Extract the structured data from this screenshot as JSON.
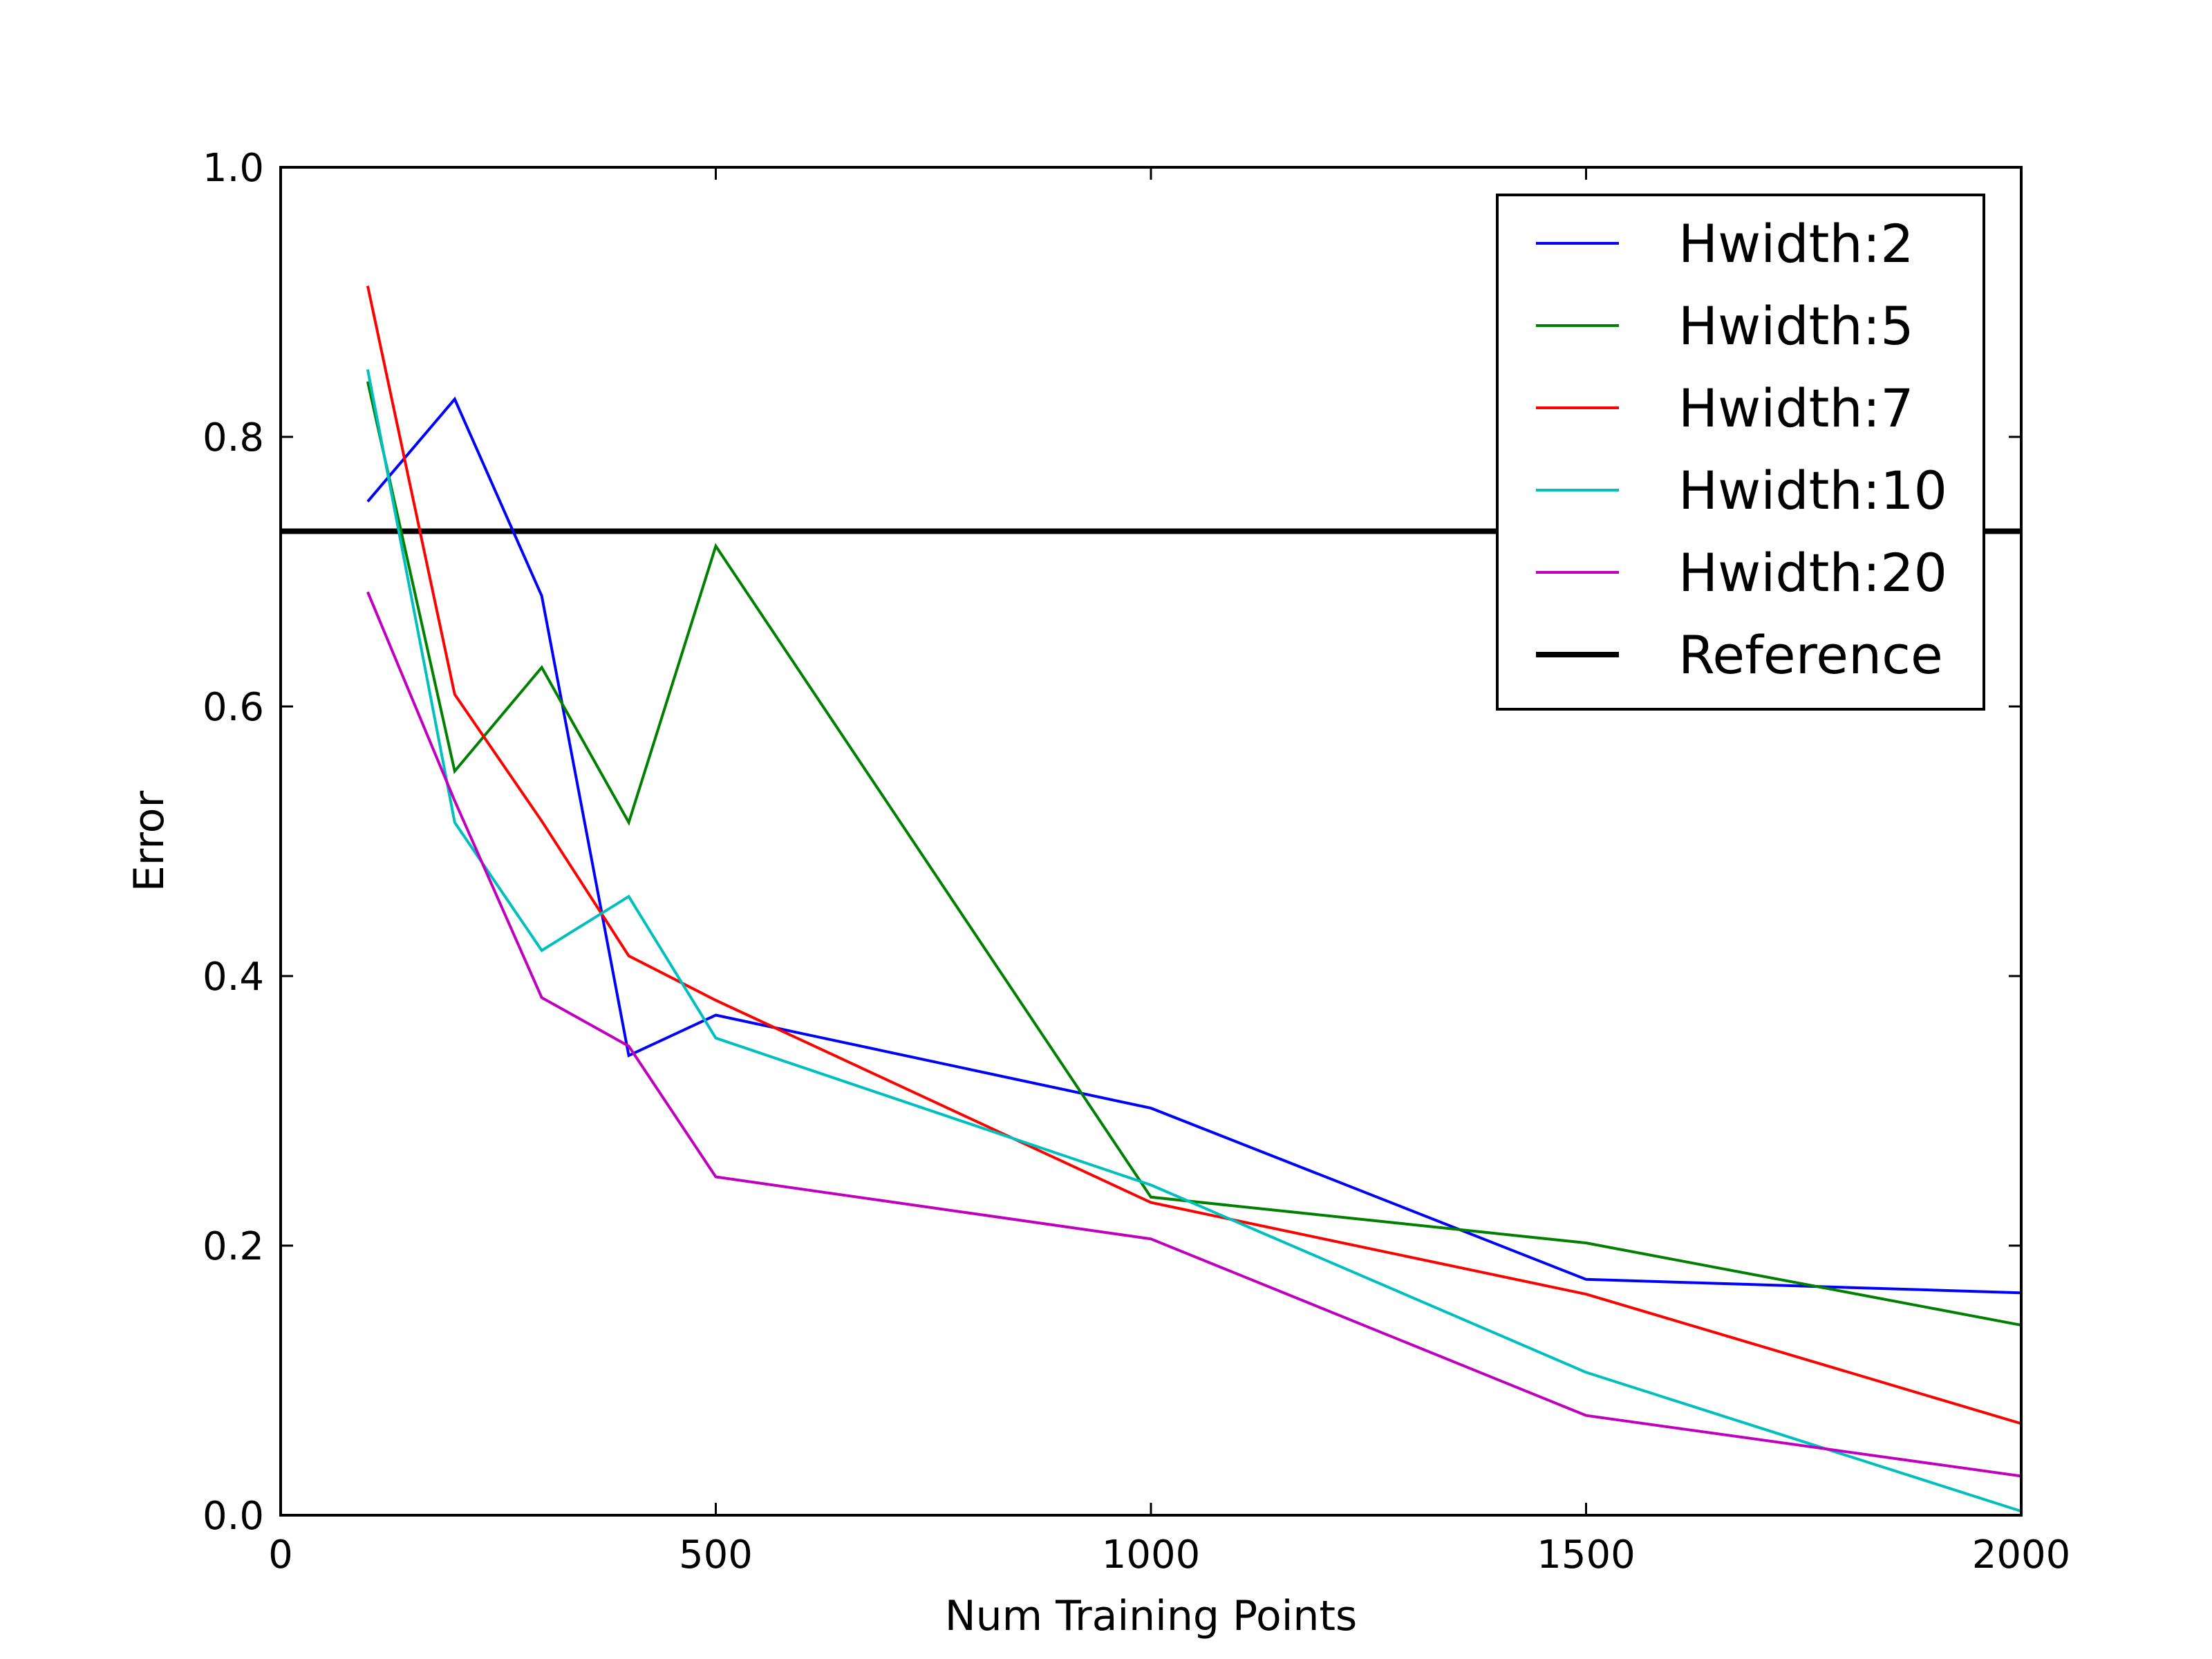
{
  "chart_data": {
    "type": "line",
    "title": "",
    "xlabel": "Num Training Points",
    "ylabel": "Error",
    "xlim": [
      0,
      2000
    ],
    "ylim": [
      0.0,
      1.0
    ],
    "xticks": [
      0,
      500,
      1000,
      1500,
      2000
    ],
    "xtick_labels": [
      "0",
      "500",
      "1000",
      "1500",
      "2000"
    ],
    "yticks": [
      0.0,
      0.2,
      0.4,
      0.6,
      0.8,
      1.0
    ],
    "ytick_labels": [
      "0.0",
      "0.2",
      "0.4",
      "0.6",
      "0.8",
      "1.0"
    ],
    "grid": false,
    "legend_position": "top-right",
    "x": [
      100,
      200,
      300,
      400,
      500,
      1000,
      1500,
      2000
    ],
    "series": [
      {
        "name": "Hwidth:2",
        "color": "#0000ff",
        "values": [
          0.752,
          0.828,
          0.682,
          0.341,
          0.371,
          0.302,
          0.175,
          0.165
        ]
      },
      {
        "name": "Hwidth:5",
        "color": "#008000",
        "values": [
          0.841,
          0.552,
          0.629,
          0.514,
          0.719,
          0.236,
          0.202,
          0.141
        ]
      },
      {
        "name": "Hwidth:7",
        "color": "#ff0000",
        "values": [
          0.912,
          0.609,
          0.515,
          0.415,
          0.382,
          0.232,
          0.164,
          0.068
        ]
      },
      {
        "name": "Hwidth:10",
        "color": "#00bfbf",
        "values": [
          0.85,
          0.514,
          0.419,
          0.459,
          0.354,
          0.245,
          0.106,
          0.003
        ]
      },
      {
        "name": "Hwidth:20",
        "color": "#bf00bf",
        "values": [
          0.685,
          0.53,
          0.384,
          0.348,
          0.251,
          0.205,
          0.074,
          0.029
        ]
      }
    ],
    "reference": {
      "name": "Reference",
      "color": "#000000",
      "value": 0.73
    }
  }
}
